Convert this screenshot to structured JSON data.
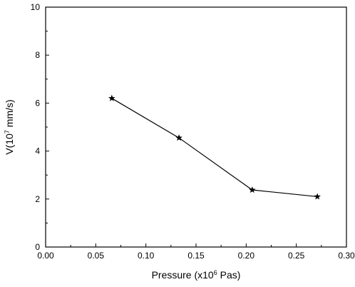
{
  "chart_data": {
    "type": "line",
    "title": "",
    "xlabel": {
      "prefix": "Pressure (x10",
      "sup": "6",
      "suffix": " Pas)"
    },
    "ylabel": {
      "prefix": "V(10",
      "sup": "7",
      "suffix": " mm/s)"
    },
    "xlim": [
      0.0,
      0.3
    ],
    "ylim": [
      0,
      10
    ],
    "x_ticks": [
      "0.00",
      "0.05",
      "0.10",
      "0.15",
      "0.20",
      "0.25",
      "0.30"
    ],
    "y_ticks": [
      "0",
      "2",
      "4",
      "6",
      "8",
      "10"
    ],
    "grid": false,
    "marker": "star",
    "series": [
      {
        "x": [
          0.066,
          0.133,
          0.206,
          0.271
        ],
        "y": [
          6.2,
          4.55,
          2.38,
          2.1
        ]
      }
    ]
  }
}
